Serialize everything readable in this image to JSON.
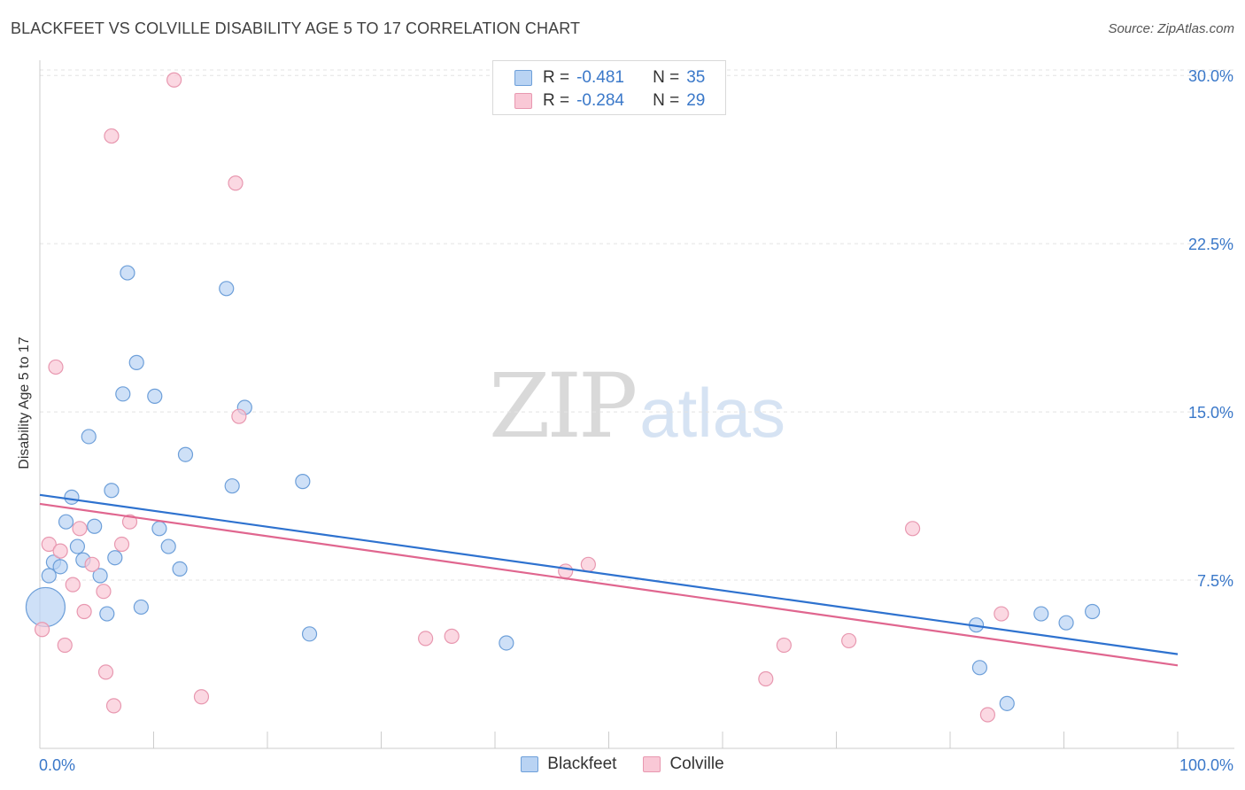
{
  "header": {
    "title": "BLACKFEET VS COLVILLE DISABILITY AGE 5 TO 17 CORRELATION CHART",
    "source": "Source: ZipAtlas.com"
  },
  "watermark": {
    "zip": "ZIP",
    "atlas": "atlas"
  },
  "legend": {
    "r_label": "R =",
    "n_label": "N =",
    "series": [
      {
        "name": "Blackfeet",
        "r": "-0.481",
        "n": "35"
      },
      {
        "name": "Colville",
        "r": "-0.284",
        "n": "29"
      }
    ]
  },
  "colors": {
    "blackfeet_fill": "#b9d3f3",
    "blackfeet_stroke": "#6d9fd9",
    "blackfeet_line": "#2e72cf",
    "colville_fill": "#f9c8d6",
    "colville_stroke": "#e898b0",
    "colville_line": "#e0668f",
    "tick_label": "#3a78c9"
  },
  "chart_data": {
    "type": "scatter",
    "title": "BLACKFEET VS COLVILLE DISABILITY AGE 5 TO 17 CORRELATION CHART",
    "xlabel": "",
    "ylabel": "Disability Age 5 to 17",
    "xlim": [
      0,
      100
    ],
    "ylim": [
      0,
      30.6
    ],
    "x_tick_labels": [
      "0.0%",
      "100.0%"
    ],
    "y_ticks": [
      7.5,
      15.0,
      22.5,
      30.0
    ],
    "y_tick_labels": [
      "7.5%",
      "15.0%",
      "22.5%",
      "30.0%"
    ],
    "grid": true,
    "series": [
      {
        "name": "Blackfeet",
        "trend": {
          "x0": 0,
          "y0": 11.3,
          "x1": 100,
          "y1": 4.2
        },
        "points": [
          {
            "x": 0.5,
            "y": 6.3,
            "big": true
          },
          {
            "x": 0.8,
            "y": 7.7
          },
          {
            "x": 1.2,
            "y": 8.3
          },
          {
            "x": 1.8,
            "y": 8.1
          },
          {
            "x": 2.3,
            "y": 10.1
          },
          {
            "x": 2.8,
            "y": 11.2
          },
          {
            "x": 3.3,
            "y": 9.0
          },
          {
            "x": 3.8,
            "y": 8.4
          },
          {
            "x": 4.3,
            "y": 13.9
          },
          {
            "x": 4.8,
            "y": 9.9
          },
          {
            "x": 5.3,
            "y": 7.7
          },
          {
            "x": 5.9,
            "y": 6.0
          },
          {
            "x": 6.3,
            "y": 11.5
          },
          {
            "x": 6.6,
            "y": 8.5
          },
          {
            "x": 7.3,
            "y": 15.8
          },
          {
            "x": 7.7,
            "y": 21.2
          },
          {
            "x": 8.5,
            "y": 17.2
          },
          {
            "x": 8.9,
            "y": 6.3
          },
          {
            "x": 10.1,
            "y": 15.7
          },
          {
            "x": 10.5,
            "y": 9.8
          },
          {
            "x": 11.3,
            "y": 9.0
          },
          {
            "x": 12.3,
            "y": 8.0
          },
          {
            "x": 12.8,
            "y": 13.1
          },
          {
            "x": 16.4,
            "y": 20.5
          },
          {
            "x": 16.9,
            "y": 11.7
          },
          {
            "x": 18.0,
            "y": 15.2
          },
          {
            "x": 23.1,
            "y": 11.9
          },
          {
            "x": 23.7,
            "y": 5.1
          },
          {
            "x": 41.0,
            "y": 4.7
          },
          {
            "x": 82.3,
            "y": 5.5
          },
          {
            "x": 82.6,
            "y": 3.6
          },
          {
            "x": 85.0,
            "y": 2.0
          },
          {
            "x": 88.0,
            "y": 6.0
          },
          {
            "x": 90.2,
            "y": 5.6
          },
          {
            "x": 92.5,
            "y": 6.1
          }
        ]
      },
      {
        "name": "Colville",
        "trend": {
          "x0": 0,
          "y0": 10.9,
          "x1": 100,
          "y1": 3.7
        },
        "points": [
          {
            "x": 0.2,
            "y": 5.3
          },
          {
            "x": 0.8,
            "y": 9.1
          },
          {
            "x": 1.4,
            "y": 17.0
          },
          {
            "x": 1.8,
            "y": 8.8
          },
          {
            "x": 2.2,
            "y": 4.6
          },
          {
            "x": 2.9,
            "y": 7.3
          },
          {
            "x": 3.5,
            "y": 9.8
          },
          {
            "x": 3.9,
            "y": 6.1
          },
          {
            "x": 4.6,
            "y": 8.2
          },
          {
            "x": 5.6,
            "y": 7.0
          },
          {
            "x": 5.8,
            "y": 3.4
          },
          {
            "x": 6.3,
            "y": 27.3
          },
          {
            "x": 6.5,
            "y": 1.9
          },
          {
            "x": 7.2,
            "y": 9.1
          },
          {
            "x": 7.9,
            "y": 10.1
          },
          {
            "x": 11.8,
            "y": 29.8
          },
          {
            "x": 14.2,
            "y": 2.3
          },
          {
            "x": 17.2,
            "y": 25.2
          },
          {
            "x": 17.5,
            "y": 14.8
          },
          {
            "x": 33.9,
            "y": 4.9
          },
          {
            "x": 36.2,
            "y": 5.0
          },
          {
            "x": 46.2,
            "y": 7.9
          },
          {
            "x": 48.2,
            "y": 8.2
          },
          {
            "x": 63.8,
            "y": 3.1
          },
          {
            "x": 65.4,
            "y": 4.6
          },
          {
            "x": 71.1,
            "y": 4.8
          },
          {
            "x": 76.7,
            "y": 9.8
          },
          {
            "x": 83.3,
            "y": 1.5
          },
          {
            "x": 84.5,
            "y": 6.0
          }
        ]
      }
    ]
  }
}
